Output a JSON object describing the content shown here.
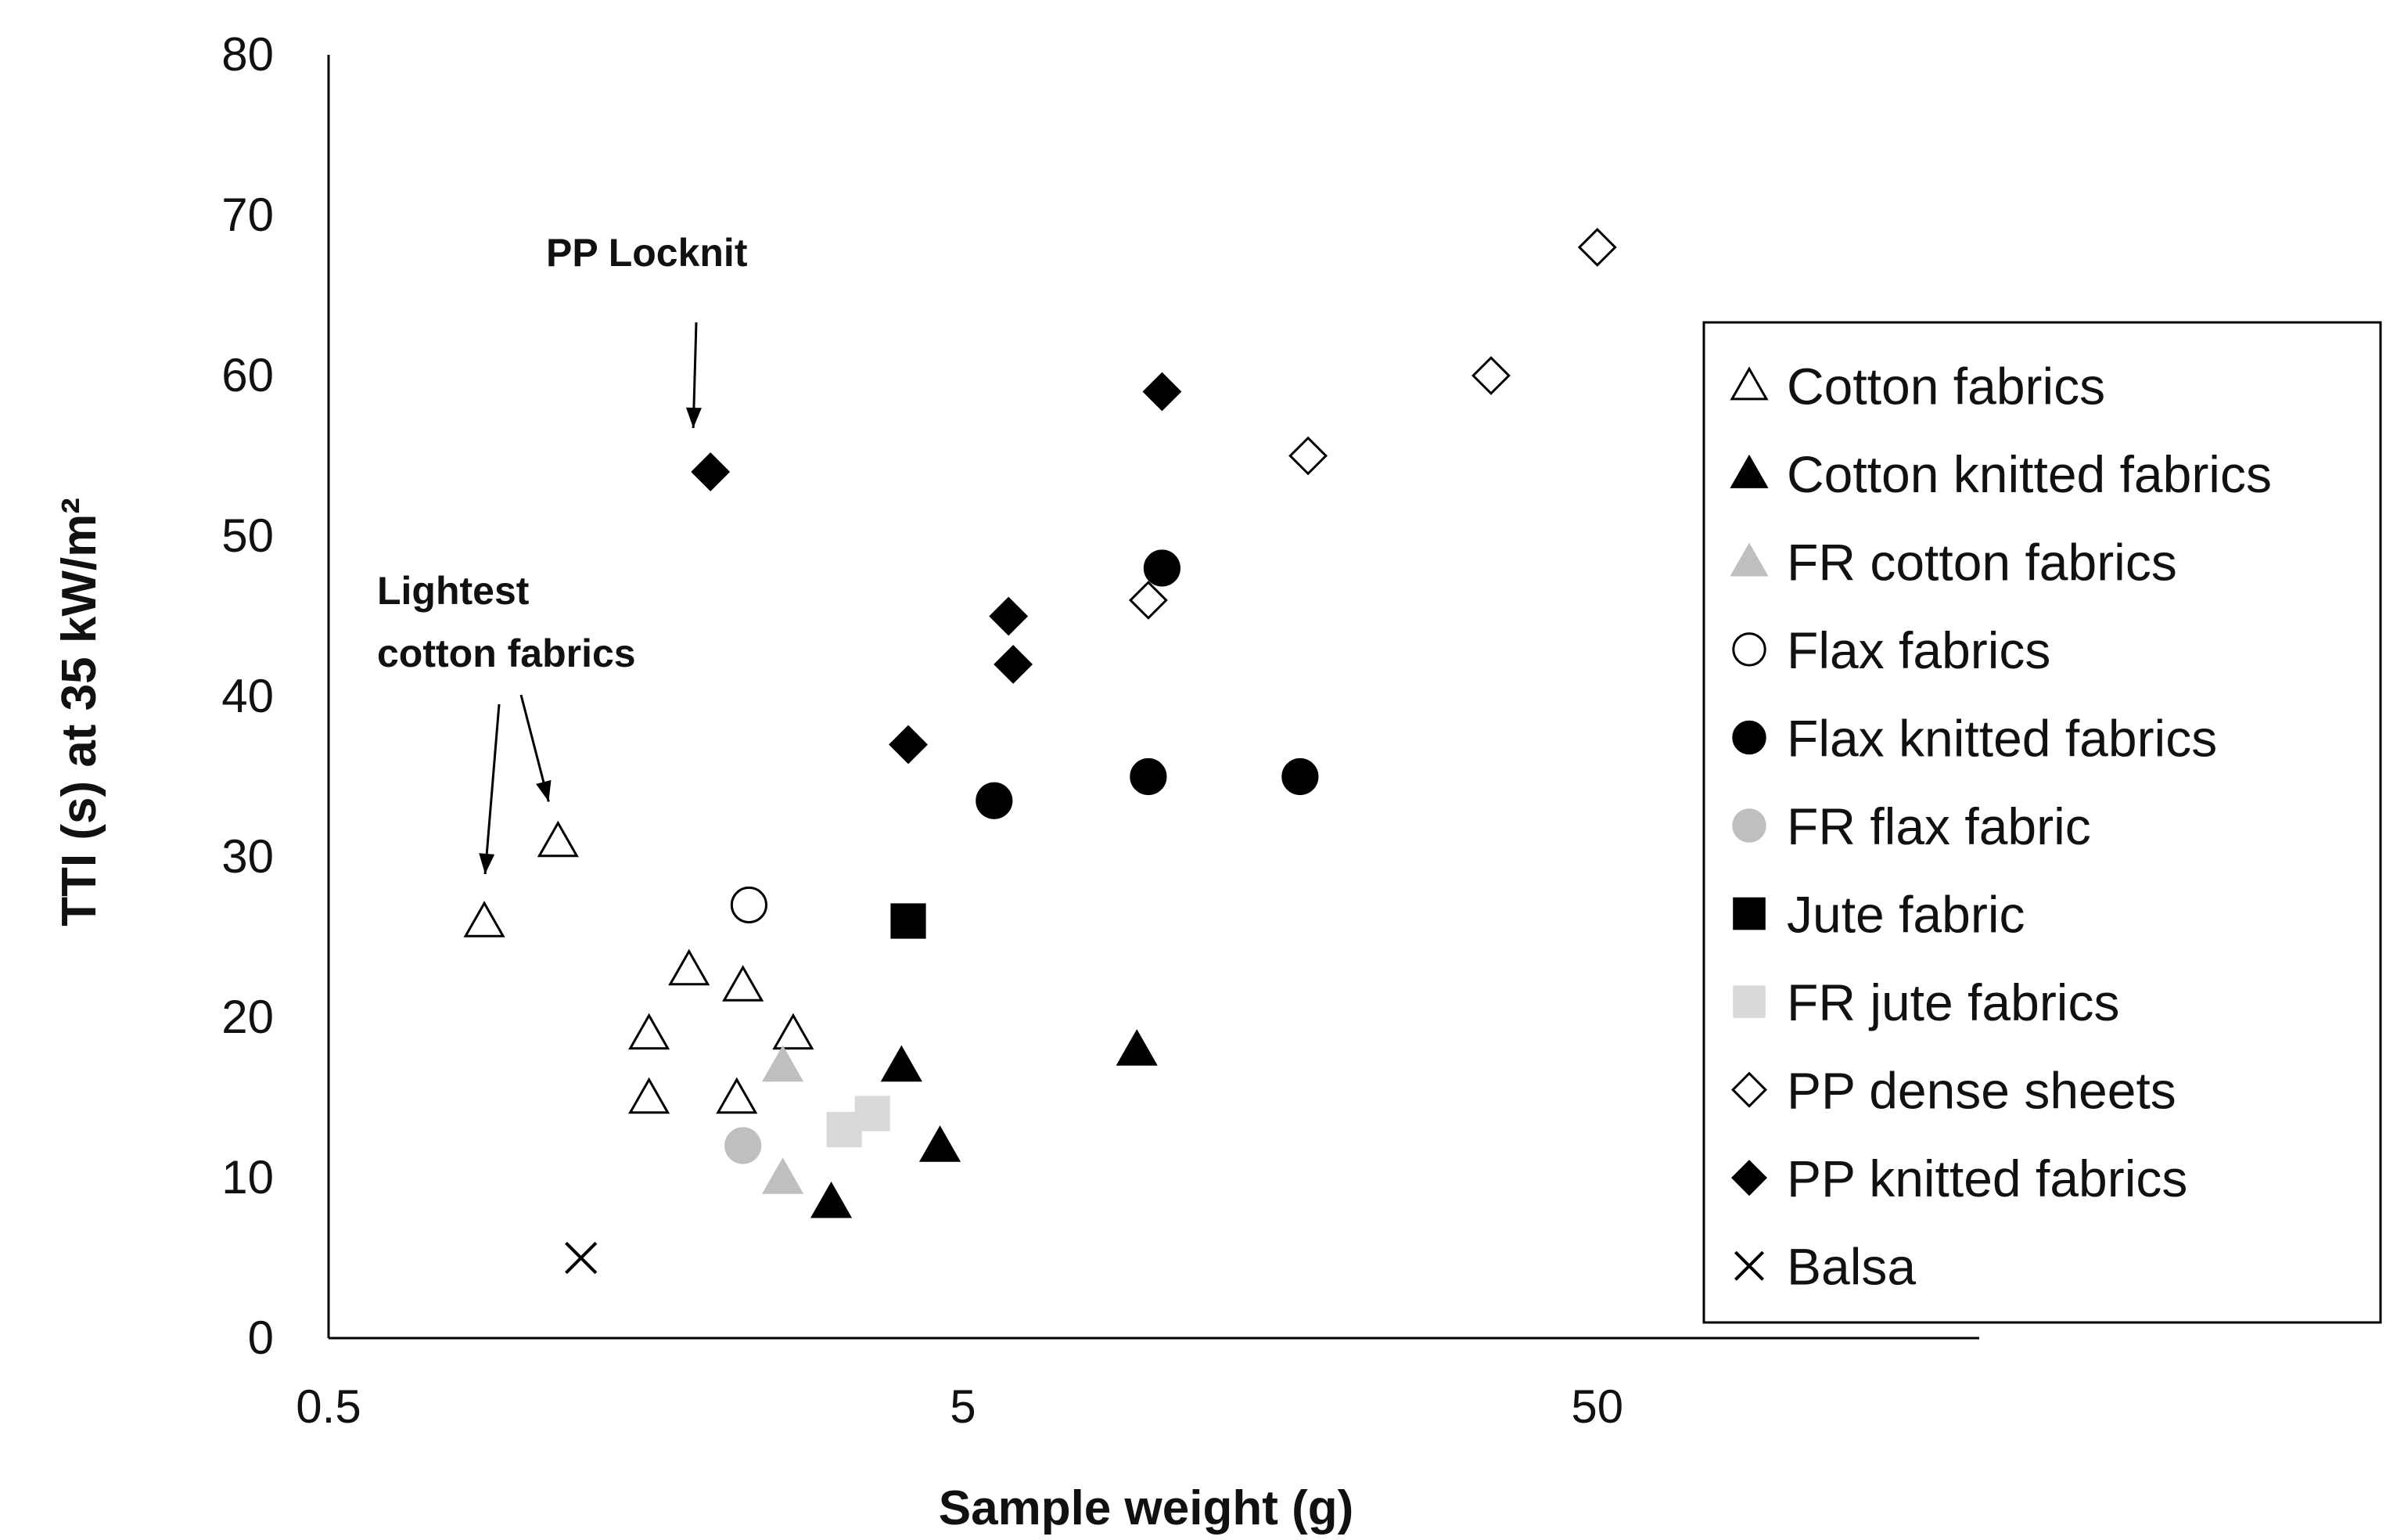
{
  "chart_data": {
    "type": "scatter",
    "xlabel": "Sample weight (g)",
    "ylabel": "TTI (s) at 35 kW/m²",
    "xscale": "log",
    "xlim": [
      0.5,
      200
    ],
    "ylim": [
      0,
      80
    ],
    "xticks": [
      0.5,
      5,
      50
    ],
    "xtick_labels": [
      "0.5",
      "5",
      "50"
    ],
    "yticks": [
      0,
      10,
      20,
      30,
      40,
      50,
      60,
      70,
      80
    ],
    "ytick_labels": [
      "0",
      "10",
      "20",
      "30",
      "40",
      "50",
      "60",
      "70",
      "80"
    ],
    "legend_position": "right",
    "series": [
      {
        "name": "Cotton fabrics",
        "marker": "triangle",
        "fill": "none",
        "stroke": "#000000",
        "points": [
          [
            0.88,
            26
          ],
          [
            1.15,
            31
          ],
          [
            1.6,
            19
          ],
          [
            1.6,
            15
          ],
          [
            1.85,
            23
          ],
          [
            2.2,
            15
          ],
          [
            2.25,
            22
          ],
          [
            2.7,
            19
          ]
        ]
      },
      {
        "name": "Cotton knitted fabrics",
        "marker": "triangle",
        "fill": "#000000",
        "stroke": "#000000",
        "points": [
          [
            3.1,
            8.5
          ],
          [
            4.0,
            17
          ],
          [
            4.6,
            12
          ],
          [
            9.4,
            18
          ]
        ]
      },
      {
        "name": "FR cotton fabrics",
        "marker": "triangle",
        "fill": "#bfbfbf",
        "stroke": "#bfbfbf",
        "points": [
          [
            2.6,
            17
          ],
          [
            2.6,
            10
          ]
        ]
      },
      {
        "name": "Flax fabrics",
        "marker": "circle",
        "fill": "none",
        "stroke": "#000000",
        "points": [
          [
            2.3,
            27
          ]
        ]
      },
      {
        "name": "Flax knitted fabrics",
        "marker": "circle",
        "fill": "#000000",
        "stroke": "#000000",
        "points": [
          [
            5.6,
            33.5
          ],
          [
            9.8,
            35
          ],
          [
            10.3,
            48
          ],
          [
            17.0,
            35
          ]
        ]
      },
      {
        "name": "FR flax fabric",
        "marker": "circle",
        "fill": "#bfbfbf",
        "stroke": "#bfbfbf",
        "points": [
          [
            2.25,
            12
          ]
        ]
      },
      {
        "name": "Jute fabric",
        "marker": "square",
        "fill": "#000000",
        "stroke": "#000000",
        "points": [
          [
            4.1,
            26
          ]
        ]
      },
      {
        "name": "FR jute fabrics",
        "marker": "square",
        "fill": "#d9d9d9",
        "stroke": "#d9d9d9",
        "points": [
          [
            3.25,
            13
          ],
          [
            3.6,
            14
          ]
        ]
      },
      {
        "name": "PP dense sheets",
        "marker": "diamond",
        "fill": "none",
        "stroke": "#000000",
        "points": [
          [
            9.8,
            46
          ],
          [
            17.5,
            55
          ],
          [
            34,
            60
          ],
          [
            50,
            68
          ]
        ]
      },
      {
        "name": "PP knitted fabrics",
        "marker": "diamond",
        "fill": "#000000",
        "stroke": "#000000",
        "points": [
          [
            2.0,
            54
          ],
          [
            4.1,
            37
          ],
          [
            5.9,
            45
          ],
          [
            6.0,
            42
          ],
          [
            10.3,
            59
          ]
        ]
      },
      {
        "name": "Balsa",
        "marker": "x",
        "fill": "none",
        "stroke": "#000000",
        "points": [
          [
            1.25,
            5
          ]
        ]
      }
    ],
    "annotations": [
      {
        "name": "pp-locknit-annotation",
        "lines": [
          "PP Locknit"
        ],
        "points_to": [
          [
            2.0,
            54
          ]
        ]
      },
      {
        "name": "lightest-cotton-annotation",
        "lines": [
          "Lightest",
          "cotton fabrics"
        ],
        "points_to": [
          [
            0.88,
            26
          ],
          [
            1.15,
            31
          ]
        ]
      }
    ]
  }
}
